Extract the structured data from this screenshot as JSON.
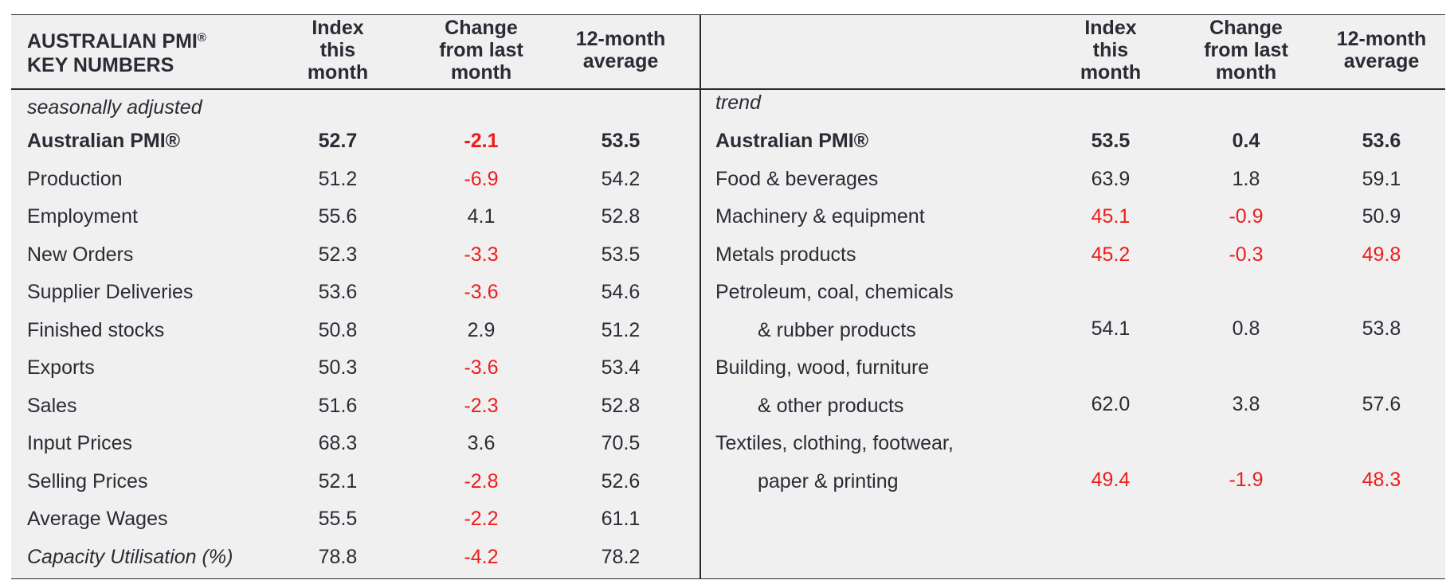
{
  "header": {
    "title_line1": "AUSTRALIAN PMI",
    "title_reg": "®",
    "title_line2": "KEY NUMBERS",
    "col_index": "Index\nthis\nmonth",
    "col_change": "Change\nfrom last\nmonth",
    "col_avg": "12-month\naverage"
  },
  "left": {
    "section_label": "seasonally adjusted",
    "rows": [
      {
        "label": "Australian PMI®",
        "index": "52.7",
        "change": "-2.1",
        "avg": "53.5"
      },
      {
        "label": "Production",
        "index": "51.2",
        "change": "-6.9",
        "avg": "54.2"
      },
      {
        "label": "Employment",
        "index": "55.6",
        "change": "4.1",
        "avg": "52.8"
      },
      {
        "label": "New Orders",
        "index": "52.3",
        "change": "-3.3",
        "avg": "53.5"
      },
      {
        "label": "Supplier Deliveries",
        "index": "53.6",
        "change": "-3.6",
        "avg": "54.6"
      },
      {
        "label": "Finished stocks",
        "index": "50.8",
        "change": "2.9",
        "avg": "51.2"
      },
      {
        "label": "Exports",
        "index": "50.3",
        "change": "-3.6",
        "avg": "53.4"
      },
      {
        "label": "Sales",
        "index": "51.6",
        "change": "-2.3",
        "avg": "52.8"
      },
      {
        "label": "Input Prices",
        "index": "68.3",
        "change": "3.6",
        "avg": "70.5"
      },
      {
        "label": "Selling Prices",
        "index": "52.1",
        "change": "-2.8",
        "avg": "52.6"
      },
      {
        "label": "Average Wages",
        "index": "55.5",
        "change": "-2.2",
        "avg": "61.1"
      },
      {
        "label": "Capacity Utilisation (%)",
        "index": "78.8",
        "change": "-4.2",
        "avg": "78.2"
      }
    ]
  },
  "right": {
    "section_label": "trend",
    "rows": [
      {
        "label": "Australian PMI®",
        "index": "53.5",
        "change": "0.4",
        "avg": "53.6"
      },
      {
        "label": "Food & beverages",
        "index": "63.9",
        "change": "1.8",
        "avg": "59.1"
      },
      {
        "label": "Machinery & equipment",
        "index": "45.1",
        "change": "-0.9",
        "avg": "50.9"
      },
      {
        "label": "Metals products",
        "index": "45.2",
        "change": "-0.3",
        "avg": "49.8"
      },
      {
        "label": "Petroleum, coal, chemicals",
        "label2": "& rubber products",
        "index": "54.1",
        "change": "0.8",
        "avg": "53.8"
      },
      {
        "label": "Building, wood, furniture",
        "label2": "& other products",
        "index": "62.0",
        "change": "3.8",
        "avg": "57.6"
      },
      {
        "label": "Textiles, clothing, footwear,",
        "label2": "paper & printing",
        "index": "49.4",
        "change": "-1.9",
        "avg": "48.3"
      }
    ]
  },
  "colors": {
    "negative": "#ee1c1c",
    "text": "#2b2b35",
    "background": "#f0f0f0"
  }
}
